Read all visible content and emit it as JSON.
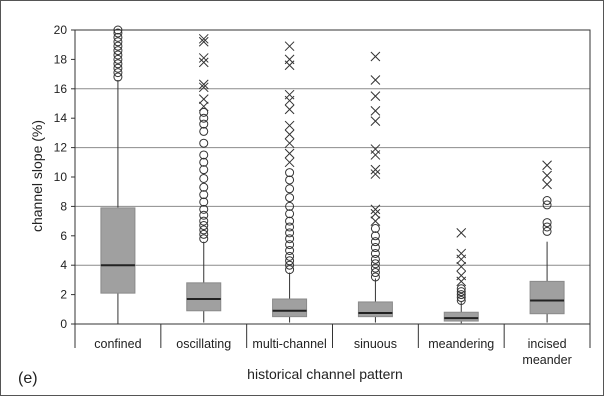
{
  "chart_data": {
    "type": "box",
    "panel_label": "(e)",
    "xlabel": "historical channel pattern",
    "ylabel": "channel slope (%)",
    "ylim": [
      0,
      20
    ],
    "yticks": [
      0,
      2,
      4,
      6,
      8,
      10,
      12,
      14,
      16,
      18,
      20
    ],
    "gridlines": [
      4,
      8,
      12,
      16,
      20
    ],
    "categories": [
      {
        "label": "confined",
        "lines": [
          "confined"
        ],
        "min": 0.0,
        "q1": 2.1,
        "median": 4.0,
        "q3": 7.9,
        "whisker_high": 16.6
      },
      {
        "label": "oscillating",
        "lines": [
          "oscillating"
        ],
        "min": 0.1,
        "q1": 0.9,
        "median": 1.7,
        "q3": 2.8,
        "whisker_high": 5.6
      },
      {
        "label": "multi-channel",
        "lines": [
          "multi-channel"
        ],
        "min": 0.1,
        "q1": 0.5,
        "median": 0.9,
        "q3": 1.7,
        "whisker_high": 3.5
      },
      {
        "label": "sinuous",
        "lines": [
          "sinuous"
        ],
        "min": 0.1,
        "q1": 0.5,
        "median": 0.75,
        "q3": 1.5,
        "whisker_high": 3.1
      },
      {
        "label": "meandering",
        "lines": [
          "meandering"
        ],
        "min": 0.05,
        "q1": 0.2,
        "median": 0.4,
        "q3": 0.8,
        "whisker_high": 1.5
      },
      {
        "label": "incised meander",
        "lines": [
          "incised",
          "meander"
        ],
        "min": 0.1,
        "q1": 0.7,
        "median": 1.6,
        "q3": 2.9,
        "whisker_high": 5.6
      }
    ],
    "outliers": [
      {
        "category": 0,
        "circles": [
          16.8,
          17.1,
          17.4,
          17.7,
          18.0,
          18.3,
          18.6,
          18.9,
          19.2,
          19.5,
          19.8,
          20.0
        ],
        "crosses": []
      },
      {
        "category": 1,
        "circles": [
          5.8,
          6.1,
          6.4,
          6.7,
          7.0,
          7.4,
          7.8,
          8.3,
          8.8,
          9.3,
          9.9,
          10.5,
          11.0,
          11.5,
          12.3,
          13.1,
          13.6,
          14.0,
          14.4
        ],
        "crosses": [
          14.8,
          15.3,
          16.1,
          16.3,
          17.8,
          18.1,
          19.2,
          19.4
        ]
      },
      {
        "category": 2,
        "circles": [
          3.7,
          4.0,
          4.3,
          4.6,
          5.0,
          5.4,
          5.8,
          6.2,
          6.6,
          7.0,
          7.5,
          8.0,
          8.6,
          9.2,
          9.8,
          10.3
        ],
        "crosses": [
          11.0,
          11.6,
          12.3,
          12.9,
          13.5,
          14.6,
          15.2,
          15.6,
          17.6,
          18.0,
          18.9
        ]
      },
      {
        "category": 3,
        "circles": [
          3.2,
          3.5,
          3.8,
          4.1,
          4.4,
          4.8,
          5.2,
          5.6,
          6.0,
          6.5
        ],
        "crosses": [
          7.0,
          7.5,
          7.8,
          10.2,
          10.5,
          11.5,
          11.9,
          13.8,
          14.5,
          15.5,
          16.6,
          18.2
        ]
      },
      {
        "category": 4,
        "circles": [
          1.6,
          1.8,
          2.0,
          2.2,
          2.4
        ],
        "crosses": [
          2.9,
          3.3,
          3.9,
          4.4,
          4.8,
          6.2
        ]
      },
      {
        "category": 5,
        "circles": [
          6.3,
          6.6,
          6.9,
          8.1,
          8.4
        ],
        "crosses": [
          9.5,
          10.1,
          10.8
        ]
      }
    ],
    "grid": true,
    "legend": "none",
    "colors": {
      "box_fill": "#a0a0a0",
      "box_stroke": "#8a8a8a",
      "median": "#222222",
      "whisker": "#333333",
      "grid": "#8c8c8c",
      "marker": "#333333",
      "frame": "#333333"
    }
  }
}
